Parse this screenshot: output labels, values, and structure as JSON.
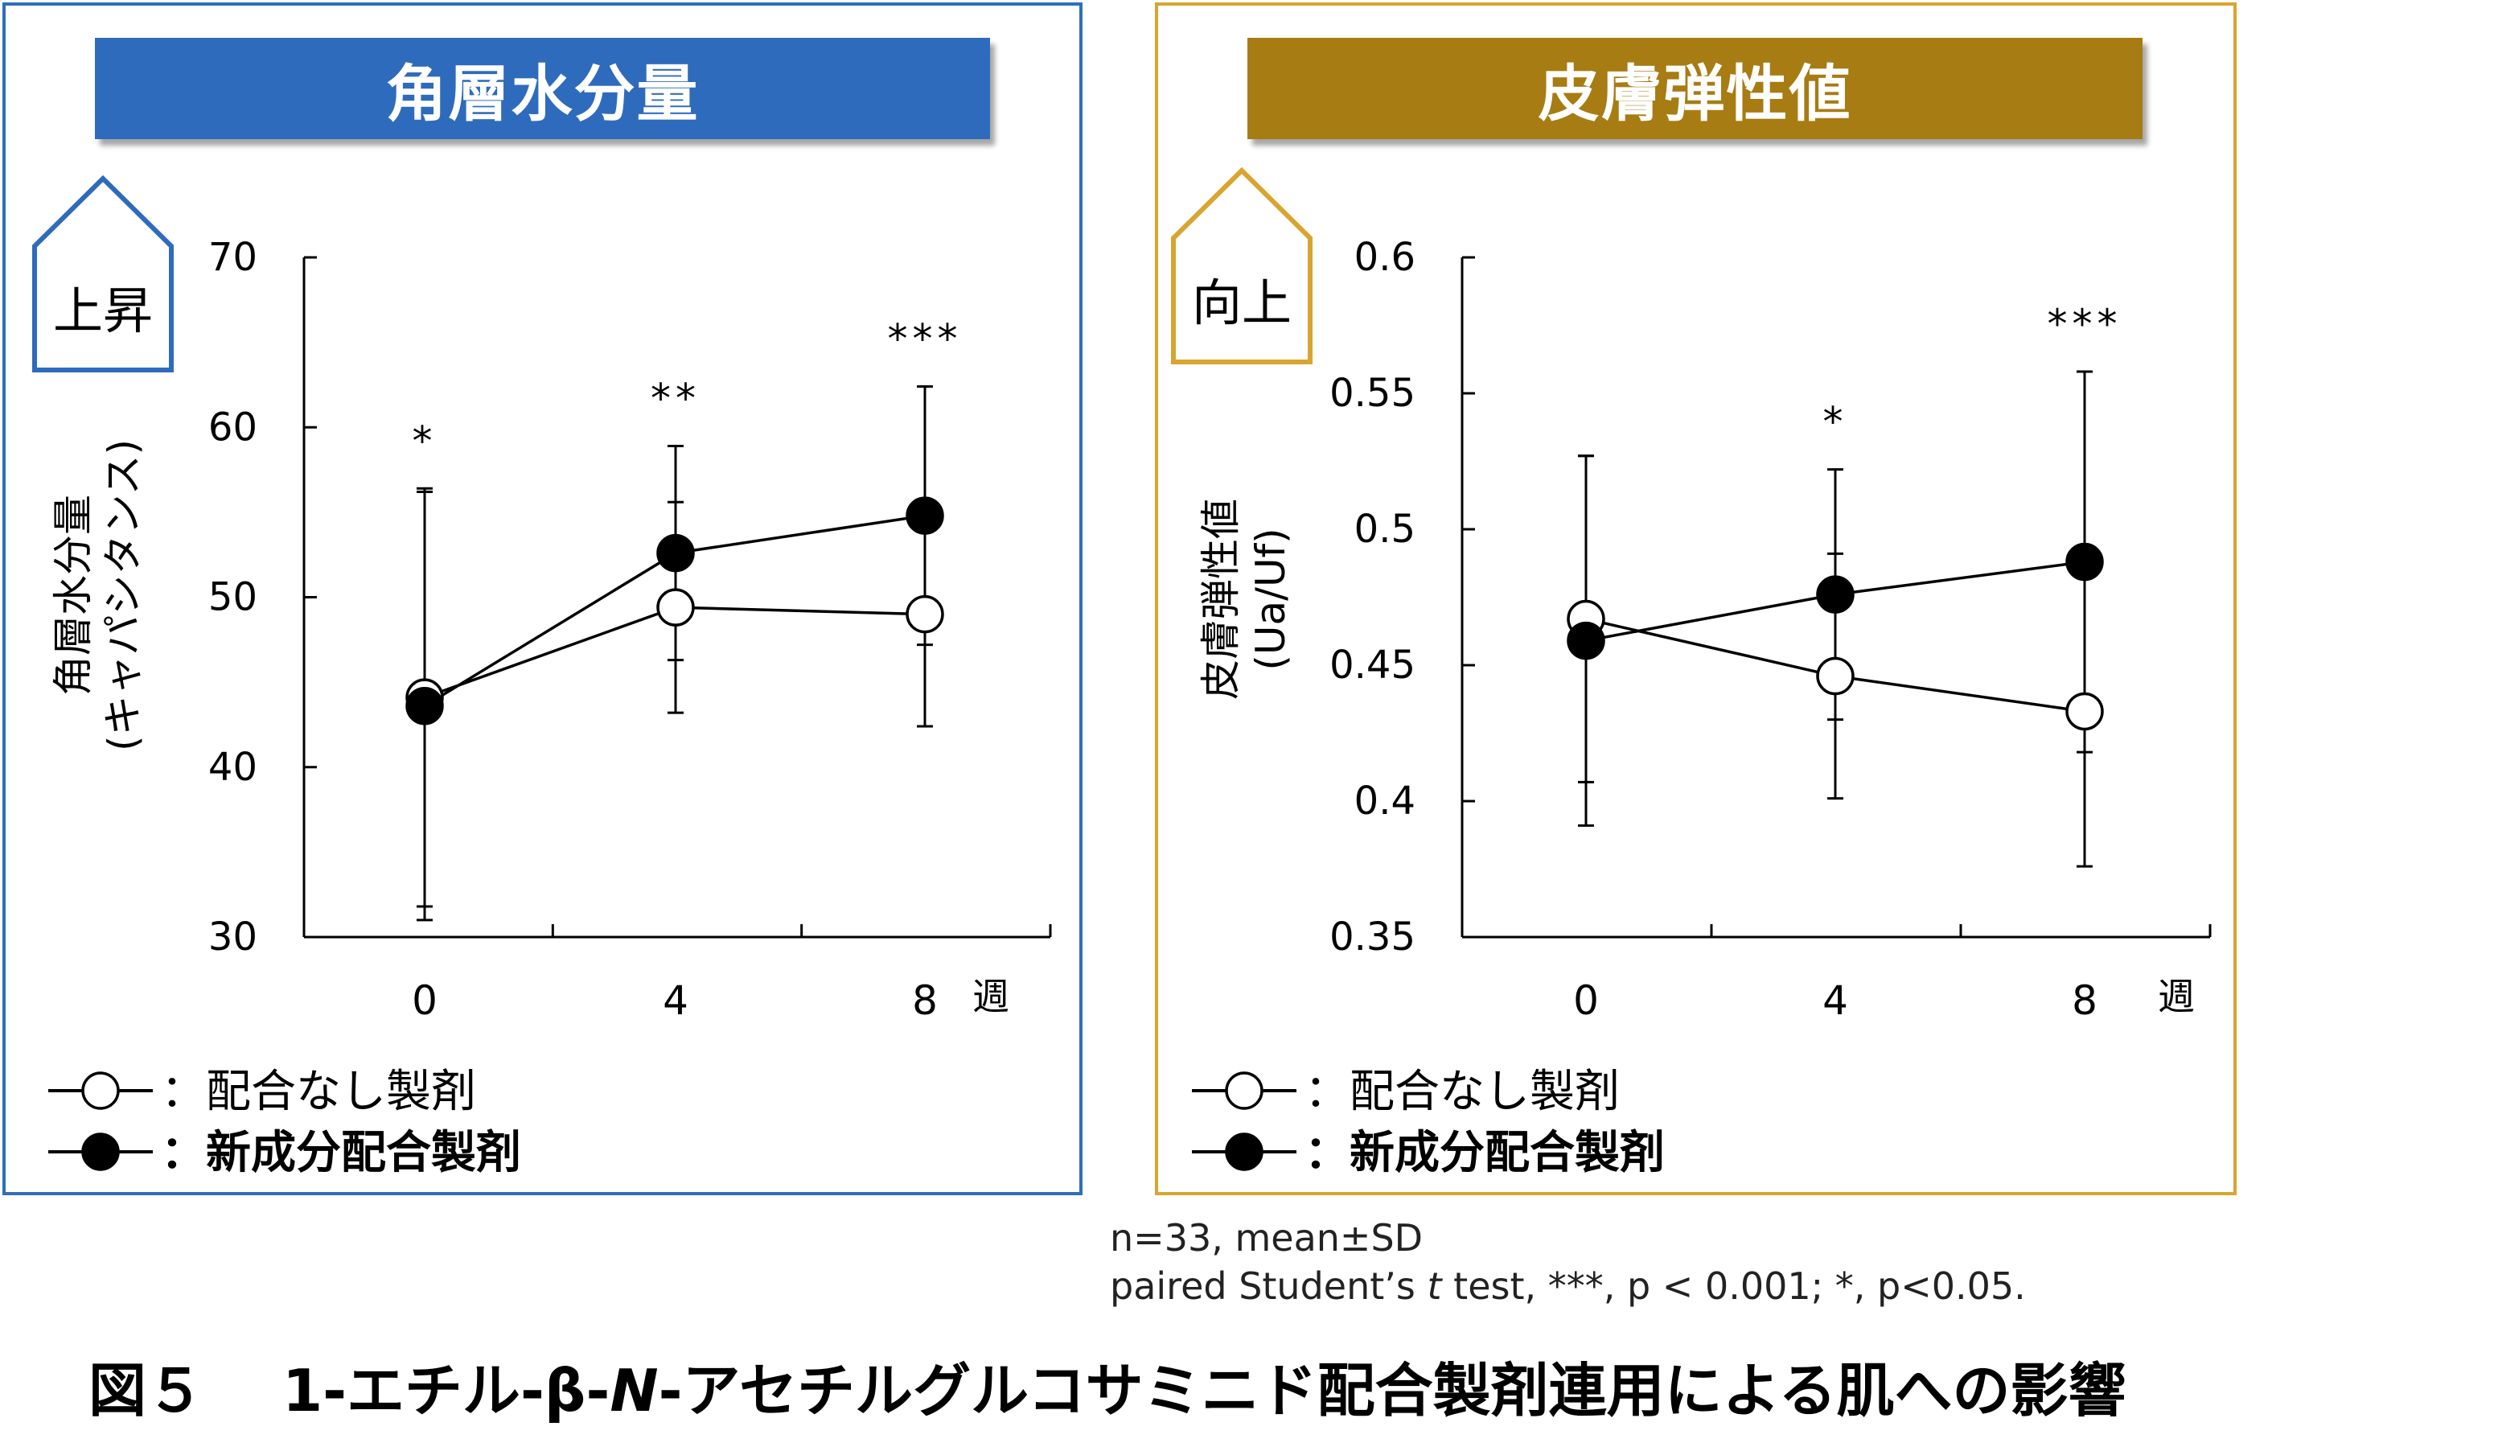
{
  "chart_data": [
    {
      "type": "line",
      "title": "角層水分量",
      "badge": "上昇",
      "ylabel_line1": "角層水分量",
      "ylabel_line2": "(キャパシタンス)",
      "xlabel": "週",
      "x": [
        0,
        4,
        8
      ],
      "x_tick_labels": [
        "0",
        "4",
        "8"
      ],
      "ylim": [
        30,
        70
      ],
      "y_ticks": [
        30,
        40,
        50,
        60,
        70
      ],
      "y_tick_labels": [
        "30",
        "40",
        "50",
        "60",
        "70"
      ],
      "series": [
        {
          "name": "配合なし製剤",
          "marker": "open-circle",
          "values": [
            44.1,
            49.4,
            49.0
          ],
          "sd": [
            12.3,
            6.2,
            6.6
          ]
        },
        {
          "name": "新成分配合製剤",
          "marker": "filled-circle",
          "values": [
            43.6,
            52.6,
            54.8
          ],
          "sd": [
            12.6,
            6.3,
            7.6
          ]
        }
      ],
      "significance": [
        "*",
        "**",
        "***"
      ],
      "legend": [
        {
          "label": "：配合なし製剤",
          "bold": false
        },
        {
          "label": "：新成分配合製剤",
          "bold": true
        }
      ]
    },
    {
      "type": "line",
      "title": "皮膚弾性値",
      "badge": "向上",
      "ylabel_line1": "皮膚弾性値",
      "ylabel_line2": "(Ua/Uf)",
      "xlabel": "週",
      "x": [
        0,
        4,
        8
      ],
      "x_tick_labels": [
        "0",
        "4",
        "8"
      ],
      "ylim": [
        0.35,
        0.6
      ],
      "y_ticks": [
        0.35,
        0.4,
        0.45,
        0.5,
        0.55,
        0.6
      ],
      "y_tick_labels": [
        "0.35",
        "0.4",
        "0.45",
        "0.5",
        "0.55",
        "0.6"
      ],
      "series": [
        {
          "name": "配合なし製剤",
          "marker": "open-circle",
          "values": [
            0.467,
            0.446,
            0.433
          ],
          "sd": [
            0.06,
            0.045,
            0.057
          ]
        },
        {
          "name": "新成分配合製剤",
          "marker": "filled-circle",
          "values": [
            0.459,
            0.476,
            0.488
          ],
          "sd": [
            0.068,
            0.046,
            0.07
          ]
        }
      ],
      "significance": [
        "",
        "*",
        "***"
      ],
      "legend": [
        {
          "label": "：配合なし製剤",
          "bold": false
        },
        {
          "label": "：新成分配合製剤",
          "bold": true
        }
      ]
    }
  ],
  "notes": {
    "line1": "n=33, mean±SD",
    "line2_pre": "paired Student’s ",
    "line2_t": "t",
    "line2_post": " test, ***, p < 0.001; *, p<0.05."
  },
  "caption": {
    "pre": "図５　 1-エチル-β-",
    "italic": "N",
    "post": "-アセチルグルコサミニド配合製剤連用による肌への影響"
  },
  "colors": {
    "blue": "#2E6BBD",
    "gold": "#A77C13",
    "gold_border": "#D9A531",
    "blue_border": "#2F6EBA"
  }
}
